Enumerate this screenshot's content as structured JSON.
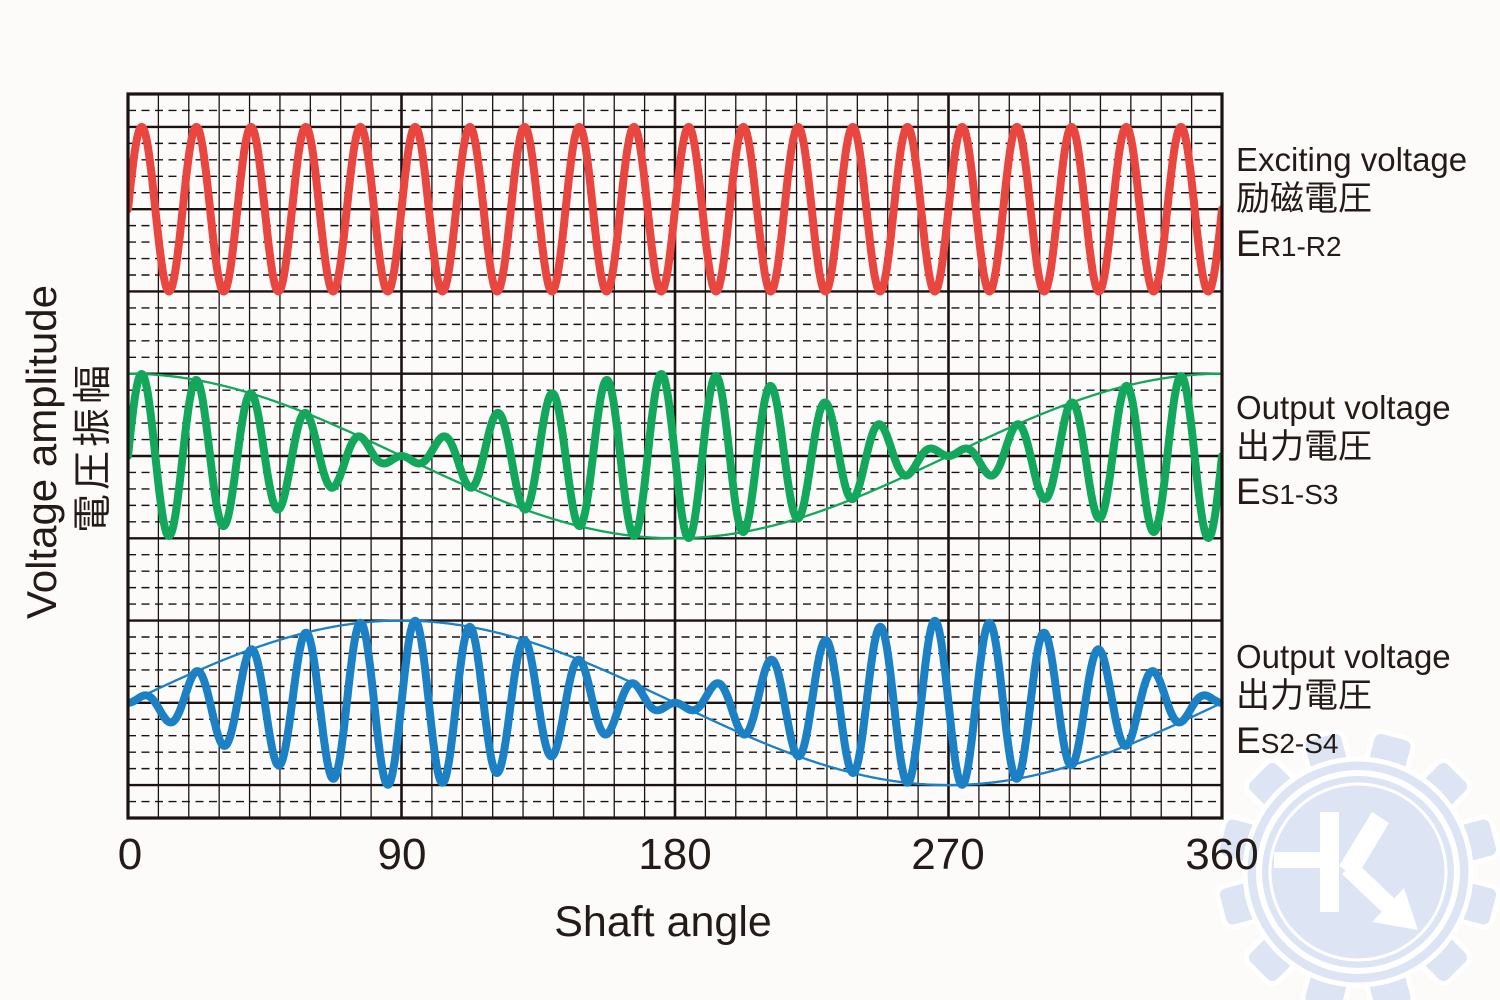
{
  "text_color": "#241b18",
  "watermark": {
    "icon": "gear-k-logo",
    "fill": "#dde4f4",
    "stroke": "#ffffff"
  },
  "chart_data": {
    "type": "line",
    "title": "",
    "xlabel": "Shaft angle",
    "ylabel": "Voltage amplitude",
    "ylabel_ja": "電圧振幅",
    "x_range": [
      0,
      360
    ],
    "x_ticks": [
      "0",
      "90",
      "180",
      "270",
      "360"
    ],
    "x_unit": "degrees of shaft rotation",
    "grid": {
      "color": "#1b1311",
      "x_step_deg": 10,
      "x_major_deg": 90,
      "y_minor_per_major": 5,
      "y_major_rows": 9,
      "style": "vertical lines solid; horizontal minor lines dashed, horizontal major lines solid"
    },
    "carrier_cycles_per_rev": 20,
    "amplitude_major_divisions": 1,
    "legend_position": "right",
    "series": [
      {
        "label": "Exciting voltage",
        "label_ja": "励磁電圧",
        "symbol": "E",
        "subscript": "R1-R2",
        "color": "#e8463f",
        "band": 0,
        "modulation": "constant",
        "envelope_shown": false,
        "formula": "sin(20θ), constant amplitude carrier"
      },
      {
        "label": "Output voltage",
        "label_ja": "出力電圧",
        "symbol": "E",
        "subscript": "S1-S3",
        "color": "#13a75b",
        "band": 1,
        "modulation": "cos",
        "envelope_shown": true,
        "formula": "cos(θ)·sin(20θ), cosine amplitude-modulated; envelope zero at 90° and 270°"
      },
      {
        "label": "Output voltage",
        "label_ja": "出力電圧",
        "symbol": "E",
        "subscript": "S2-S4",
        "color": "#1b80c4",
        "band": 2,
        "modulation": "sin",
        "envelope_shown": true,
        "formula": "sin(θ)·sin(20θ), sine amplitude-modulated; envelope zero at 0°, 180°, 360°"
      }
    ]
  }
}
